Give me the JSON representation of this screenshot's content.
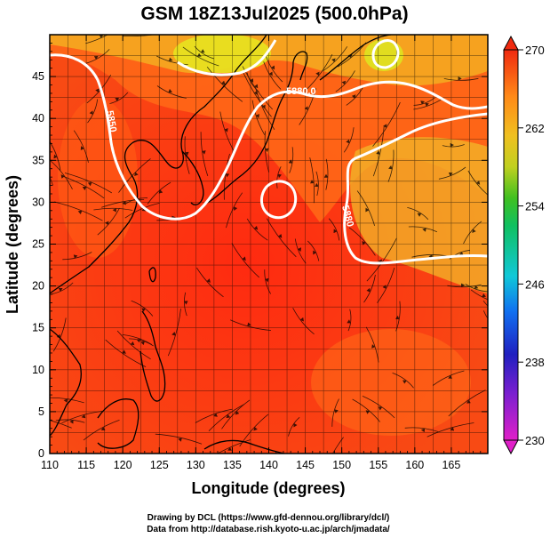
{
  "title": "GSM 18Z13Jul2025 (500.0hPa)",
  "x_axis": {
    "label": "Longitude (degrees)",
    "range": [
      110,
      170
    ],
    "ticks": [
      "110",
      "115",
      "120",
      "125",
      "130",
      "135",
      "140",
      "145",
      "150",
      "155",
      "160",
      "165"
    ]
  },
  "y_axis": {
    "label": "Latitude  (degrees)",
    "range": [
      0,
      50
    ],
    "ticks": [
      "0",
      "5",
      "10",
      "15",
      "20",
      "25",
      "30",
      "35",
      "40",
      "45"
    ]
  },
  "colorbar": {
    "range": [
      230,
      270
    ],
    "ticks": [
      "230",
      "238",
      "246",
      "254",
      "262",
      "270"
    ]
  },
  "contour_labels": [
    "5850",
    "5880.0",
    "5880"
  ],
  "credits": [
    "Drawing by DCL (https://www.gfd-dennou.org/library/dcl/)",
    "Data from http://database.rish.kyoto-u.ac.jp/arch/jmadata/"
  ],
  "colors": {
    "temp_warm": "#f02a10",
    "temp_mid": "#ff7a15",
    "temp_cool": "#e6d020",
    "contour": "#ffffff",
    "coast": "#000000"
  }
}
